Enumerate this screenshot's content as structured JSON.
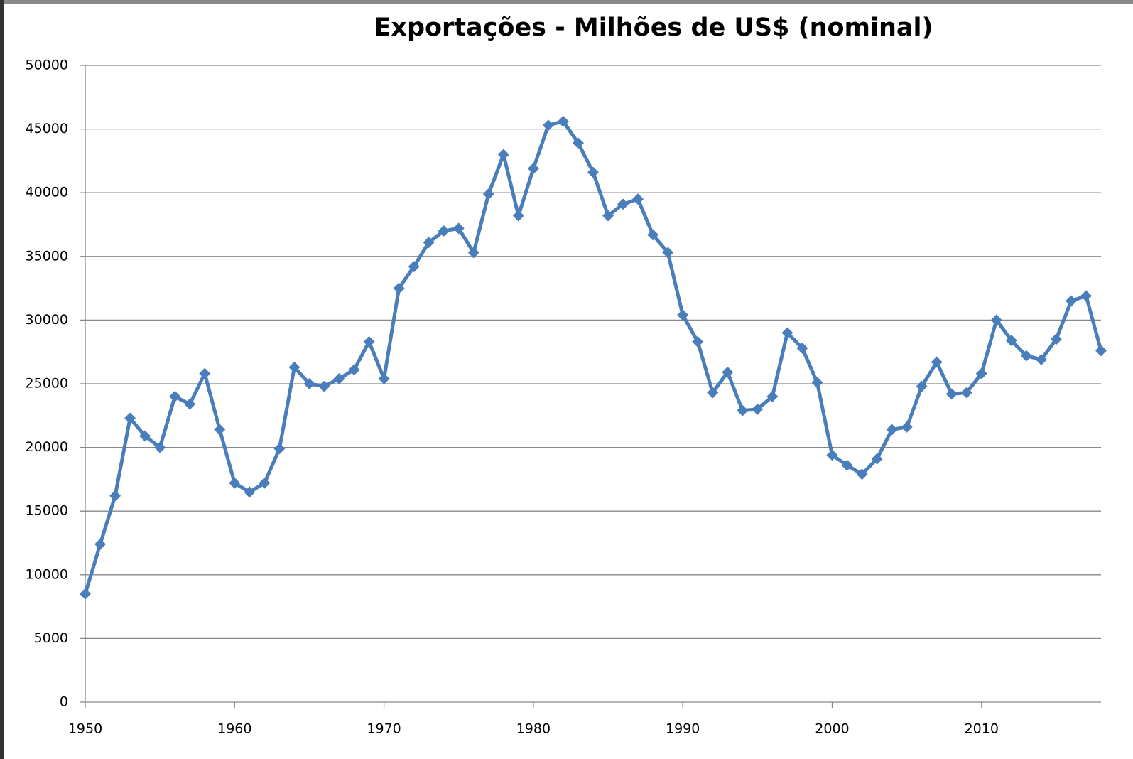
{
  "chart_data": {
    "type": "line",
    "title": "Exportações - Milhões de US$ (nominal)",
    "x": [
      1950,
      1951,
      1952,
      1953,
      1954,
      1955,
      1956,
      1957,
      1958,
      1959,
      1960,
      1961,
      1962,
      1963,
      1964,
      1965,
      1966,
      1967,
      1968,
      1969,
      1970,
      1971,
      1972,
      1973,
      1974,
      1975,
      1976,
      1977,
      1978,
      1979,
      1980,
      1981,
      1982,
      1983,
      1984,
      1985,
      1986,
      1987,
      1988,
      1989,
      1990,
      1991,
      1992,
      1993,
      1994,
      1995,
      1996,
      1997,
      1998,
      1999,
      2000,
      2001,
      2002,
      2003,
      2004,
      2005,
      2006,
      2007,
      2008,
      2009,
      2010,
      2011,
      2012,
      2013,
      2014,
      2015,
      2016,
      2017,
      2018
    ],
    "values": [
      8500,
      12400,
      16200,
      22300,
      20900,
      20000,
      24000,
      23400,
      25800,
      21400,
      17200,
      16500,
      17200,
      19900,
      26300,
      25000,
      24800,
      25400,
      26100,
      28300,
      25400,
      32500,
      34200,
      36100,
      37000,
      37200,
      35300,
      39900,
      43000,
      38200,
      41900,
      45300,
      45600,
      43900,
      41600,
      38200,
      39100,
      39500,
      36700,
      35300,
      30400,
      28300,
      24300,
      25900,
      22900,
      23000,
      24000,
      29000,
      27800,
      25100,
      19400,
      18600,
      17900,
      19100,
      21400,
      21600,
      24800,
      26700,
      24200,
      24300,
      25800,
      30000,
      28400,
      27200,
      26900,
      28500,
      31500,
      31900,
      27600
    ],
    "color": "#4a7ebb",
    "xlim": [
      1950,
      2018
    ],
    "xticks": [
      1950,
      1960,
      1970,
      1980,
      1990,
      2000,
      2010
    ],
    "ylim": [
      0,
      50000
    ],
    "yticks": [
      0,
      5000,
      10000,
      15000,
      20000,
      25000,
      30000,
      35000,
      40000,
      45000,
      50000
    ],
    "grid": true
  }
}
